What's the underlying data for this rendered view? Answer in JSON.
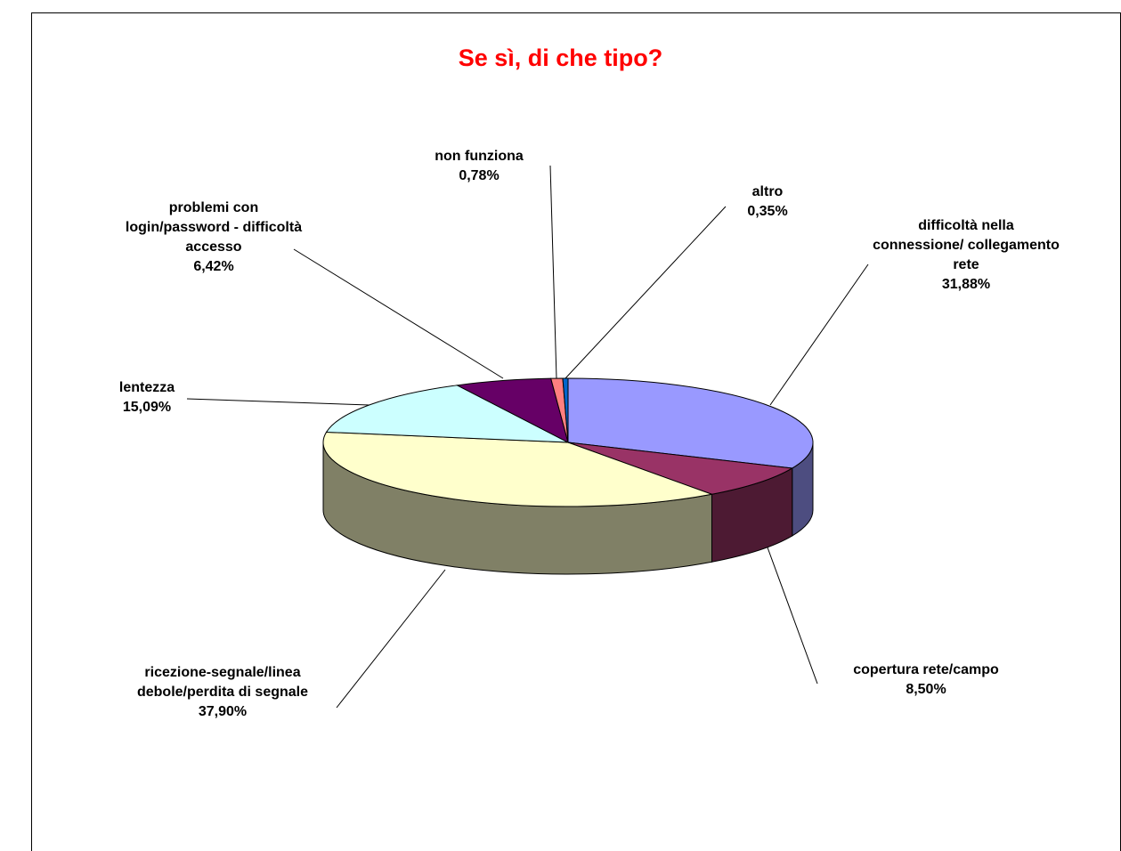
{
  "chart_data": {
    "type": "pie3d",
    "title": "Se sì, di che tipo?",
    "categories": [
      "difficoltà nella connessione/ collegamento rete",
      "copertura rete/campo",
      "ricezione-segnale/linea debole/perdita di segnale",
      "lentezza",
      "problemi con login/password - difficoltà accesso",
      "non funziona",
      "altro"
    ],
    "values": [
      31.88,
      8.5,
      37.9,
      15.09,
      6.42,
      0.78,
      0.35
    ],
    "value_labels": [
      "31,88%",
      "8,50%",
      "37,90%",
      "15,09%",
      "6,42%",
      "0,78%",
      "0,35%"
    ],
    "colors": [
      "#9999ff",
      "#993366",
      "#ffffcc",
      "#ccffff",
      "#660066",
      "#ff8080",
      "#0066cc"
    ]
  }
}
